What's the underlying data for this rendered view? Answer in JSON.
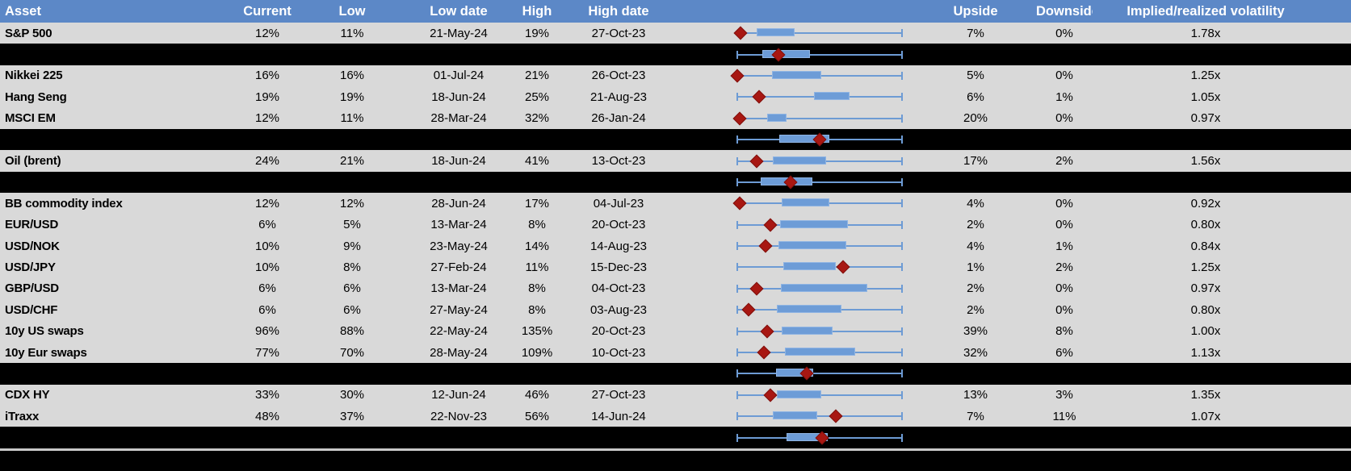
{
  "colors": {
    "header_bg": "#5C88C7",
    "header_text": "#FFFFFF",
    "row_bg": "#D9D9D9",
    "separator_bg": "#000000",
    "box_fill": "#6D9CD7",
    "box_border": "#8FB4E3",
    "whisker": "#6D9BD4",
    "diamond": "#A81712",
    "divider": "#C9C9C9"
  },
  "chart_data": {
    "type": "table",
    "columns": [
      {
        "key": "asset",
        "label": "Asset"
      },
      {
        "key": "current",
        "label": "Current"
      },
      {
        "key": "low",
        "label": "Low"
      },
      {
        "key": "low_date",
        "label": "Low date"
      },
      {
        "key": "high",
        "label": "High"
      },
      {
        "key": "high_date",
        "label": "High date"
      },
      {
        "key": "range_chart",
        "label": ""
      },
      {
        "key": "upside",
        "label": "Upside"
      },
      {
        "key": "downside",
        "label": "Downside"
      },
      {
        "key": "implied_realized",
        "label": "Implied/realized volatility"
      }
    ],
    "boxplot_note": "Each row chart: whisker spans low-to-high (normalized 0-1), blue box = middle range, red diamond = current level",
    "rows": [
      {
        "kind": "asset",
        "asset": "S&P 500",
        "current": "12%",
        "low": "11%",
        "low_date": "21-May-24",
        "high": "19%",
        "high_date": "27-Oct-23",
        "upside": "7%",
        "downside": "0%",
        "implied_realized": "1.78x",
        "boxplot": {
          "diamond": 0.02,
          "box_left": 0.12,
          "box_right": 0.35,
          "left_cap": false,
          "right_cap": true
        }
      },
      {
        "kind": "separator",
        "boxplot": {
          "diamond": 0.25,
          "box_left": 0.15,
          "box_right": 0.44,
          "left_cap": true,
          "right_cap": true
        }
      },
      {
        "kind": "asset",
        "asset": "Nikkei 225",
        "current": "16%",
        "low": "16%",
        "low_date": "01-Jul-24",
        "high": "21%",
        "high_date": "26-Oct-23",
        "upside": "5%",
        "downside": "0%",
        "implied_realized": "1.25x",
        "boxplot": {
          "diamond": 0.0,
          "box_left": 0.21,
          "box_right": 0.51,
          "left_cap": false,
          "right_cap": true
        }
      },
      {
        "kind": "asset",
        "asset": "Hang Seng",
        "current": "19%",
        "low": "19%",
        "low_date": "18-Jun-24",
        "high": "25%",
        "high_date": "21-Aug-23",
        "upside": "6%",
        "downside": "1%",
        "implied_realized": "1.05x",
        "boxplot": {
          "diamond": 0.13,
          "box_left": 0.465,
          "box_right": 0.68,
          "left_cap": true,
          "right_cap": true
        }
      },
      {
        "kind": "asset",
        "asset": "MSCI EM",
        "current": "12%",
        "low": "11%",
        "low_date": "28-Mar-24",
        "high": "32%",
        "high_date": "26-Jan-24",
        "upside": "20%",
        "downside": "0%",
        "implied_realized": "0.97x",
        "boxplot": {
          "diamond": 0.015,
          "box_left": 0.18,
          "box_right": 0.3,
          "left_cap": false,
          "right_cap": true
        }
      },
      {
        "kind": "separator",
        "boxplot": {
          "diamond": 0.5,
          "box_left": 0.255,
          "box_right": 0.56,
          "left_cap": true,
          "right_cap": true
        }
      },
      {
        "kind": "asset",
        "asset": "Oil (brent)",
        "current": "24%",
        "low": "21%",
        "low_date": "18-Jun-24",
        "high": "41%",
        "high_date": "13-Oct-23",
        "upside": "17%",
        "downside": "2%",
        "implied_realized": "1.56x",
        "boxplot": {
          "diamond": 0.12,
          "box_left": 0.215,
          "box_right": 0.54,
          "left_cap": true,
          "right_cap": true
        }
      },
      {
        "kind": "separator",
        "boxplot": {
          "diamond": 0.325,
          "box_left": 0.14,
          "box_right": 0.455,
          "left_cap": true,
          "right_cap": true
        }
      },
      {
        "kind": "asset",
        "asset": "BB commodity index",
        "current": "12%",
        "low": "12%",
        "low_date": "28-Jun-24",
        "high": "17%",
        "high_date": "04-Jul-23",
        "upside": "4%",
        "downside": "0%",
        "implied_realized": "0.92x",
        "boxplot": {
          "diamond": 0.015,
          "box_left": 0.27,
          "box_right": 0.56,
          "left_cap": false,
          "right_cap": true
        }
      },
      {
        "kind": "asset",
        "asset": "EUR/USD",
        "current": "6%",
        "low": "5%",
        "low_date": "13-Mar-24",
        "high": "8%",
        "high_date": "20-Oct-23",
        "upside": "2%",
        "downside": "0%",
        "implied_realized": "0.80x",
        "boxplot": {
          "diamond": 0.2,
          "box_left": 0.26,
          "box_right": 0.67,
          "left_cap": true,
          "right_cap": true
        }
      },
      {
        "kind": "asset",
        "asset": "USD/NOK",
        "current": "10%",
        "low": "9%",
        "low_date": "23-May-24",
        "high": "14%",
        "high_date": "14-Aug-23",
        "upside": "4%",
        "downside": "1%",
        "implied_realized": "0.84x",
        "boxplot": {
          "diamond": 0.17,
          "box_left": 0.25,
          "box_right": 0.66,
          "left_cap": true,
          "right_cap": true
        }
      },
      {
        "kind": "asset",
        "asset": "USD/JPY",
        "current": "10%",
        "low": "8%",
        "low_date": "27-Feb-24",
        "high": "11%",
        "high_date": "15-Dec-23",
        "upside": "1%",
        "downside": "2%",
        "implied_realized": "1.25x",
        "boxplot": {
          "diamond": 0.64,
          "box_left": 0.28,
          "box_right": 0.6,
          "left_cap": true,
          "right_cap": true
        }
      },
      {
        "kind": "asset",
        "asset": "GBP/USD",
        "current": "6%",
        "low": "6%",
        "low_date": "13-Mar-24",
        "high": "8%",
        "high_date": "04-Oct-23",
        "upside": "2%",
        "downside": "0%",
        "implied_realized": "0.97x",
        "boxplot": {
          "diamond": 0.12,
          "box_left": 0.265,
          "box_right": 0.79,
          "left_cap": true,
          "right_cap": true
        }
      },
      {
        "kind": "asset",
        "asset": "USD/CHF",
        "current": "6%",
        "low": "6%",
        "low_date": "27-May-24",
        "high": "8%",
        "high_date": "03-Aug-23",
        "upside": "2%",
        "downside": "0%",
        "implied_realized": "0.80x",
        "boxplot": {
          "diamond": 0.07,
          "box_left": 0.24,
          "box_right": 0.63,
          "left_cap": true,
          "right_cap": true
        }
      },
      {
        "kind": "asset",
        "asset": "10y US swaps",
        "current": "96%",
        "low": "88%",
        "low_date": "22-May-24",
        "high": "135%",
        "high_date": "20-Oct-23",
        "upside": "39%",
        "downside": "8%",
        "implied_realized": "1.00x",
        "boxplot": {
          "diamond": 0.18,
          "box_left": 0.27,
          "box_right": 0.58,
          "left_cap": true,
          "right_cap": true
        }
      },
      {
        "kind": "asset",
        "asset": "10y Eur swaps",
        "current": "77%",
        "low": "70%",
        "low_date": "28-May-24",
        "high": "109%",
        "high_date": "10-Oct-23",
        "upside": "32%",
        "downside": "6%",
        "implied_realized": "1.13x",
        "boxplot": {
          "diamond": 0.16,
          "box_left": 0.29,
          "box_right": 0.715,
          "left_cap": true,
          "right_cap": true
        }
      },
      {
        "kind": "separator",
        "boxplot": {
          "diamond": 0.42,
          "box_left": 0.235,
          "box_right": 0.46,
          "left_cap": true,
          "right_cap": true
        }
      },
      {
        "kind": "asset",
        "asset": "CDX HY",
        "current": "33%",
        "low": "30%",
        "low_date": "12-Jun-24",
        "high": "46%",
        "high_date": "27-Oct-23",
        "upside": "13%",
        "downside": "3%",
        "implied_realized": "1.35x",
        "boxplot": {
          "diamond": 0.2,
          "box_left": 0.24,
          "box_right": 0.51,
          "left_cap": true,
          "right_cap": true
        }
      },
      {
        "kind": "asset",
        "asset": "iTraxx",
        "current": "48%",
        "low": "37%",
        "low_date": "22-Nov-23",
        "high": "56%",
        "high_date": "14-Jun-24",
        "upside": "7%",
        "downside": "11%",
        "implied_realized": "1.07x",
        "boxplot": {
          "diamond": 0.6,
          "box_left": 0.215,
          "box_right": 0.485,
          "left_cap": true,
          "right_cap": true
        }
      },
      {
        "kind": "separator",
        "boxplot": {
          "diamond": 0.515,
          "box_left": 0.3,
          "box_right": 0.55,
          "left_cap": true,
          "right_cap": true
        }
      }
    ]
  }
}
